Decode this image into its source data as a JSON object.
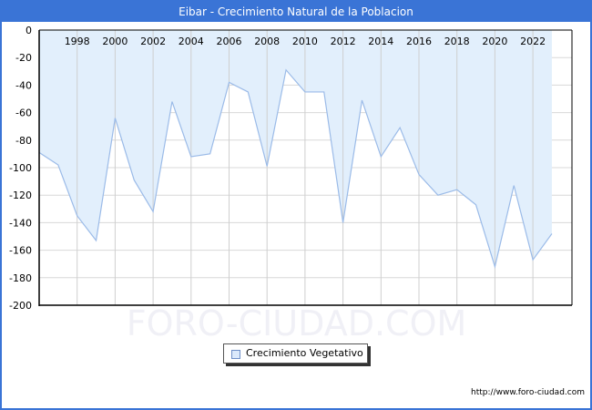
{
  "title": "Eibar - Crecimiento Natural de la Poblacion",
  "watermark": "FORO-CIUDAD.COM",
  "legend": {
    "label": "Crecimiento Vegetativo"
  },
  "footer": {
    "url": "http://www.foro-ciudad.com"
  },
  "colors": {
    "titlebar": "#3a74d6",
    "fill": "#e2effc",
    "line": "#9bbbe8",
    "grid": "#d8d8d8"
  },
  "chart_data": {
    "type": "area",
    "title": "Eibar - Crecimiento Natural de la Poblacion",
    "xlabel": "",
    "ylabel": "",
    "x": [
      1996,
      1997,
      1998,
      1999,
      2000,
      2001,
      2002,
      2003,
      2004,
      2005,
      2006,
      2007,
      2008,
      2009,
      2010,
      2011,
      2012,
      2013,
      2014,
      2015,
      2016,
      2017,
      2018,
      2019,
      2020,
      2021,
      2022,
      2023
    ],
    "series": [
      {
        "name": "Crecimiento Vegetativo",
        "values": [
          -89,
          -98,
          -135,
          -153,
          -64,
          -109,
          -132,
          -52,
          -92,
          -90,
          -38,
          -45,
          -99,
          -29,
          -45,
          -45,
          -140,
          -51,
          -92,
          -71,
          -105,
          -120,
          -116,
          -127,
          -172,
          -113,
          -167,
          -148
        ]
      }
    ],
    "x_tick_labels": [
      "1998",
      "2000",
      "2002",
      "2004",
      "2006",
      "2008",
      "2010",
      "2012",
      "2014",
      "2016",
      "2018",
      "2020",
      "2022"
    ],
    "y_tick_labels": [
      "0",
      "-20",
      "-40",
      "-60",
      "-80",
      "-100",
      "-120",
      "-140",
      "-160",
      "-180",
      "-200"
    ],
    "ylim": [
      -200,
      0
    ],
    "xlim": [
      1996,
      2024
    ],
    "grid": true,
    "legend_position": "bottom-center"
  }
}
